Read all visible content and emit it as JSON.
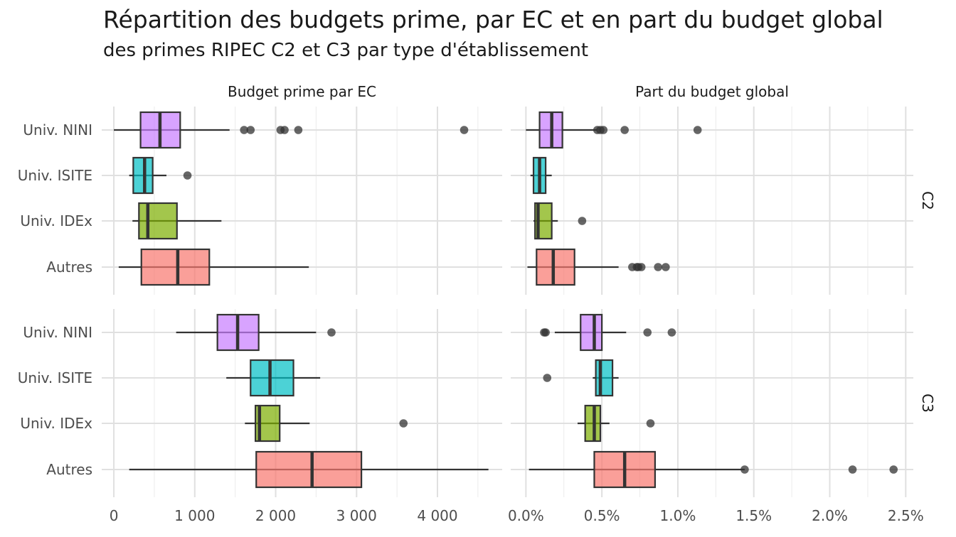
{
  "title": "Répartition des budgets prime, par EC et en part du budget global",
  "subtitle": "des primes RIPEC C2 et C3 par type d'établissement",
  "colors": {
    "Univ. NINI": "#c77cff",
    "Univ. ISITE": "#00bfc4",
    "Univ. IDEx": "#7cae00",
    "Autres": "#f8766d"
  },
  "chart_data": {
    "type": "boxplot",
    "facets": {
      "columns": [
        "Budget prime par EC",
        "Part du budget global"
      ],
      "rows": [
        "C2",
        "C3"
      ]
    },
    "categories": [
      "Univ. NINI",
      "Univ. ISITE",
      "Univ. IDEx",
      "Autres"
    ],
    "x_axes": [
      {
        "ticks": [
          0,
          1000,
          2000,
          3000,
          4000
        ],
        "tick_labels": [
          "0",
          "1 000",
          "2 000",
          "3 000",
          "4 000"
        ],
        "xlim": [
          -150,
          4800
        ]
      },
      {
        "ticks": [
          0,
          0.5,
          1.0,
          1.5,
          2.0,
          2.5
        ],
        "tick_labels": [
          "0.0%",
          "0.5%",
          "1.0%",
          "1.5%",
          "2.0%",
          "2.5%"
        ],
        "xlim": [
          -0.1,
          2.55
        ]
      }
    ],
    "grid": true,
    "panels": [
      {
        "column": "Budget prime par EC",
        "row": "C2",
        "boxes": [
          {
            "category": "Univ. NINI",
            "whisker_low": 0,
            "q1": 330,
            "median": 570,
            "q3": 820,
            "whisker_high": 1430,
            "outliers": [
              1610,
              1690,
              2060,
              2110,
              2280,
              4330
            ]
          },
          {
            "category": "Univ. ISITE",
            "whisker_low": 190,
            "q1": 240,
            "median": 380,
            "q3": 480,
            "whisker_high": 650,
            "outliers": [
              910
            ]
          },
          {
            "category": "Univ. IDEx",
            "whisker_low": 230,
            "q1": 310,
            "median": 420,
            "q3": 780,
            "whisker_high": 1330,
            "outliers": []
          },
          {
            "category": "Autres",
            "whisker_low": 60,
            "q1": 340,
            "median": 790,
            "q3": 1180,
            "whisker_high": 2410,
            "outliers": []
          }
        ]
      },
      {
        "column": "Budget prime par EC",
        "row": "C3",
        "boxes": [
          {
            "category": "Univ. NINI",
            "whisker_low": 770,
            "q1": 1280,
            "median": 1530,
            "q3": 1790,
            "whisker_high": 2500,
            "outliers": [
              2690
            ]
          },
          {
            "category": "Univ. ISITE",
            "whisker_low": 1390,
            "q1": 1690,
            "median": 1930,
            "q3": 2220,
            "whisker_high": 2550,
            "outliers": []
          },
          {
            "category": "Univ. IDEx",
            "whisker_low": 1620,
            "q1": 1750,
            "median": 1800,
            "q3": 2050,
            "whisker_high": 2420,
            "outliers": [
              3580
            ]
          },
          {
            "category": "Autres",
            "whisker_low": 190,
            "q1": 1760,
            "median": 2450,
            "q3": 3060,
            "whisker_high": 4630,
            "outliers": []
          }
        ]
      },
      {
        "column": "Part du budget global",
        "row": "C2",
        "boxes": [
          {
            "category": "Univ. NINI",
            "whisker_low": 0.0,
            "q1": 0.09,
            "median": 0.17,
            "q3": 0.24,
            "whisker_high": 0.47,
            "outliers": [
              0.47,
              0.49,
              0.51,
              0.65,
              1.13
            ]
          },
          {
            "category": "Univ. ISITE",
            "whisker_low": 0.03,
            "q1": 0.05,
            "median": 0.09,
            "q3": 0.13,
            "whisker_high": 0.17,
            "outliers": []
          },
          {
            "category": "Univ. IDEx",
            "whisker_low": 0.05,
            "q1": 0.06,
            "median": 0.08,
            "q3": 0.17,
            "whisker_high": 0.21,
            "outliers": [
              0.37
            ]
          },
          {
            "category": "Autres",
            "whisker_low": 0.01,
            "q1": 0.07,
            "median": 0.18,
            "q3": 0.32,
            "whisker_high": 0.61,
            "outliers": [
              0.7,
              0.73,
              0.74,
              0.76,
              0.87,
              0.92
            ]
          }
        ]
      },
      {
        "column": "Part du budget global",
        "row": "C3",
        "boxes": [
          {
            "category": "Univ. NINI",
            "whisker_low": 0.19,
            "q1": 0.36,
            "median": 0.45,
            "q3": 0.5,
            "whisker_high": 0.66,
            "outliers": [
              0.12,
              0.13,
              0.8,
              0.96
            ]
          },
          {
            "category": "Univ. ISITE",
            "whisker_low": 0.44,
            "q1": 0.46,
            "median": 0.49,
            "q3": 0.57,
            "whisker_high": 0.61,
            "outliers": [
              0.14
            ]
          },
          {
            "category": "Univ. IDEx",
            "whisker_low": 0.34,
            "q1": 0.39,
            "median": 0.45,
            "q3": 0.49,
            "whisker_high": 0.55,
            "outliers": [
              0.82
            ]
          },
          {
            "category": "Autres",
            "whisker_low": 0.02,
            "q1": 0.45,
            "median": 0.65,
            "q3": 0.85,
            "whisker_high": 1.44,
            "outliers": [
              1.44,
              2.15,
              2.42
            ]
          }
        ]
      }
    ]
  }
}
